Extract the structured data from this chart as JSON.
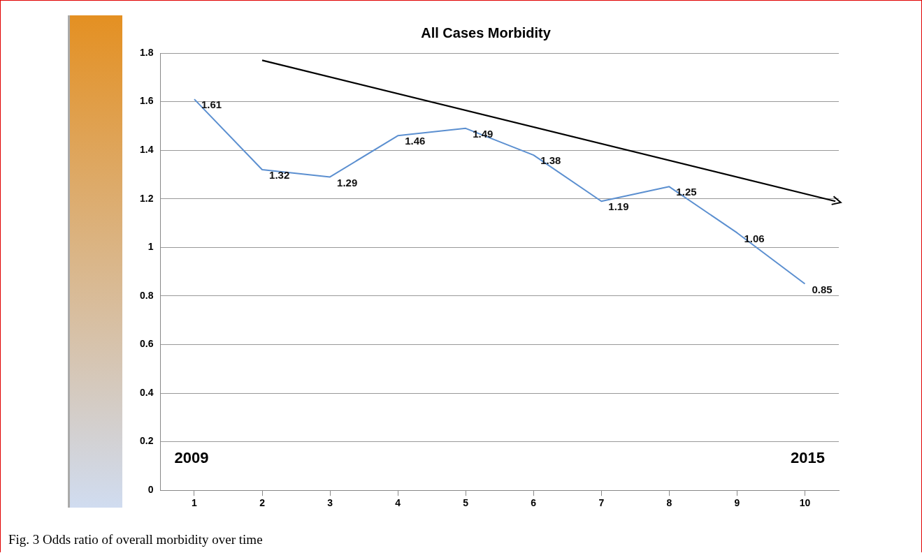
{
  "chart_data": {
    "type": "line",
    "title": "All Cases Morbidity",
    "x": [
      1,
      2,
      3,
      4,
      5,
      6,
      7,
      8,
      9,
      10
    ],
    "xlim": [
      0.5,
      10.5
    ],
    "xticks": [
      1,
      2,
      3,
      4,
      5,
      6,
      7,
      8,
      9,
      10
    ],
    "ylim": [
      0,
      1.8
    ],
    "yticks": [
      0,
      0.2,
      0.4,
      0.6,
      0.8,
      1,
      1.2,
      1.4,
      1.6,
      1.8
    ],
    "series": [
      {
        "color": "#5b8fd0",
        "values": [
          1.61,
          1.32,
          1.29,
          1.46,
          1.49,
          1.38,
          1.19,
          1.25,
          1.06,
          0.85
        ],
        "value_labels": [
          "1.61",
          "1.32",
          "1.29",
          "1.46",
          "1.49",
          "1.38",
          "1.19",
          "1.25",
          "1.06",
          "0.85"
        ]
      },
      {
        "type": "line",
        "color": "#000000",
        "x": [
          2,
          10.45
        ],
        "values": [
          1.77,
          1.19
        ]
      }
    ],
    "grid": "y",
    "legend": false,
    "line_style": "solid",
    "annotations": [
      "2009",
      "2015",
      "Fig. 3  Odds ratio of overall morbidity over time"
    ]
  }
}
